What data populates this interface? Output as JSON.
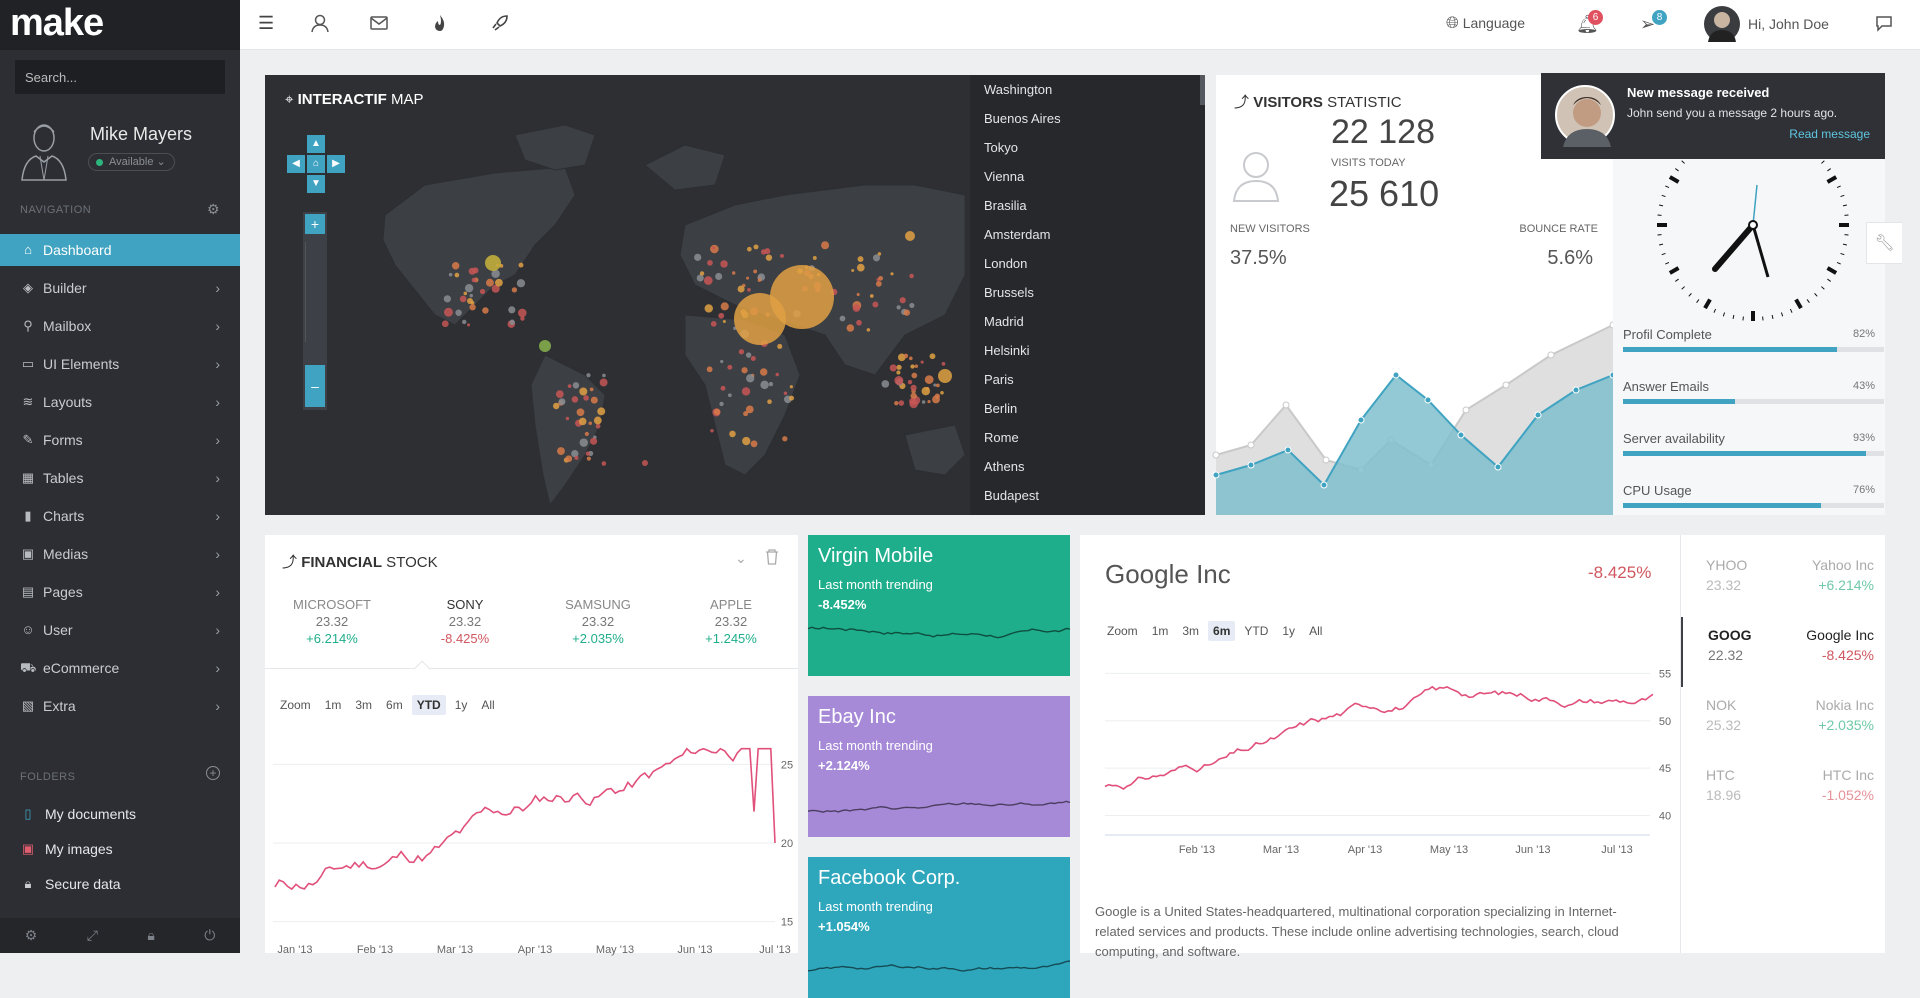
{
  "app": {
    "logo": "make"
  },
  "sidebar": {
    "search_placeholder": "Search...",
    "profile": {
      "name": "Mike Mayers",
      "status": "Available"
    },
    "nav_label": "NAVIGATION",
    "items": [
      {
        "label": "Dashboard",
        "icon": "home-icon"
      },
      {
        "label": "Builder",
        "icon": "tag-icon"
      },
      {
        "label": "Mailbox",
        "icon": "pin-icon"
      },
      {
        "label": "UI Elements",
        "icon": "monitor-icon"
      },
      {
        "label": "Layouts",
        "icon": "layers-icon"
      },
      {
        "label": "Forms",
        "icon": "edit-icon"
      },
      {
        "label": "Tables",
        "icon": "table-icon"
      },
      {
        "label": "Charts",
        "icon": "bar-chart-icon"
      },
      {
        "label": "Medias",
        "icon": "image-icon"
      },
      {
        "label": "Pages",
        "icon": "folder-icon"
      },
      {
        "label": "User",
        "icon": "user-icon"
      },
      {
        "label": "eCommerce",
        "icon": "cart-icon"
      },
      {
        "label": "Extra",
        "icon": "box-icon"
      }
    ],
    "folders_label": "FOLDERS",
    "folders": [
      {
        "label": "My documents",
        "color": "#3fa3c1"
      },
      {
        "label": "My images",
        "color": "#e05d6f"
      },
      {
        "label": "Secure data",
        "color": "#c9ccd1"
      }
    ]
  },
  "topbar": {
    "language": "Language",
    "notifications_count": "6",
    "messages_count": "8",
    "user_greeting": "Hi, John Doe"
  },
  "map": {
    "title_bold": "INTERACTIF",
    "title_rest": " MAP",
    "cities": [
      "Washington",
      "Buenos Aires",
      "Tokyo",
      "Vienna",
      "Brasilia",
      "Amsterdam",
      "London",
      "Brussels",
      "Madrid",
      "Helsinki",
      "Paris",
      "Berlin",
      "Rome",
      "Athens",
      "Budapest"
    ]
  },
  "visitors": {
    "title_bold": "VISITORS",
    "title_rest": " STATISTIC",
    "partial_top": "22 128",
    "visits_today_label": "VISITS TODAY",
    "visits_today": "25 610",
    "new_visitors_label": "NEW VISITORS",
    "new_visitors": "37.5%",
    "bounce_rate_label": "BOUNCE RATE",
    "bounce_rate": "5.6%"
  },
  "toast": {
    "title": "New message received",
    "body": "John send you a message 2 hours ago.",
    "link": "Read message"
  },
  "progress": [
    {
      "label": "Profil Complete",
      "pct": "82%",
      "value": 82
    },
    {
      "label": "Answer Emails",
      "pct": "43%",
      "value": 43
    },
    {
      "label": "Server availability",
      "pct": "93%",
      "value": 93
    },
    {
      "label": "CPU Usage",
      "pct": "76%",
      "value": 76
    }
  ],
  "financial": {
    "title_bold": "FINANCIAL",
    "title_rest": " STOCK",
    "tickers": [
      {
        "name": "MICROSOFT",
        "price": "23.32",
        "change": "+6.214%",
        "up": true
      },
      {
        "name": "SONY",
        "price": "23.32",
        "change": "-8.425%",
        "up": false
      },
      {
        "name": "SAMSUNG",
        "price": "23.32",
        "change": "+2.035%",
        "up": true
      },
      {
        "name": "APPLE",
        "price": "23.32",
        "change": "+1.245%",
        "up": true
      }
    ],
    "zoom_label": "Zoom",
    "zoom_options": [
      "1m",
      "3m",
      "6m",
      "YTD",
      "1y",
      "All"
    ],
    "zoom_selected": "YTD",
    "y_ticks": [
      "25",
      "20",
      "15"
    ],
    "x_ticks": [
      "Jan '13",
      "Feb '13",
      "Mar '13",
      "Apr '13",
      "May '13",
      "Jun '13",
      "Jul '13"
    ]
  },
  "tiles": [
    {
      "name": "Virgin Mobile",
      "sub": "Last month trending",
      "value": "-8.452%",
      "color": "#1fae8b"
    },
    {
      "name": "Ebay Inc",
      "sub": "Last month trending",
      "value": "+2.124%",
      "color": "#a68ad7"
    },
    {
      "name": "Facebook Corp.",
      "sub": "Last month trending",
      "value": "+1.054%",
      "color": "#2ea7bc"
    }
  ],
  "google": {
    "name": "Google Inc",
    "change": "-8.425%",
    "zoom_label": "Zoom",
    "zoom_options": [
      "1m",
      "3m",
      "6m",
      "YTD",
      "1y",
      "All"
    ],
    "zoom_selected": "6m",
    "y_ticks": [
      "55",
      "50",
      "45",
      "40"
    ],
    "x_ticks": [
      "Feb '13",
      "Mar '13",
      "Apr '13",
      "May '13",
      "Jun '13",
      "Jul '13"
    ],
    "description": "Google is a United States-headquartered, multinational corporation specializing in Internet-related services and products. These include online advertising technologies, search, cloud computing, and software."
  },
  "stock_list": [
    {
      "symbol": "YHOO",
      "price": "23.32",
      "company": "Yahoo Inc",
      "change": "+6.214%",
      "up": true,
      "active": false
    },
    {
      "symbol": "GOOG",
      "price": "22.32",
      "company": "Google Inc",
      "change": "-8.425%",
      "up": false,
      "active": true
    },
    {
      "symbol": "NOK",
      "price": "25.32",
      "company": "Nokia Inc",
      "change": "+2.035%",
      "up": true,
      "active": false
    },
    {
      "symbol": "HTC",
      "price": "18.96",
      "company": "HTC Inc",
      "change": "-1.052%",
      "up": false,
      "active": false
    }
  ],
  "colors": {
    "accent": "#3fa3c1",
    "up": "#1fae8b",
    "down": "#d0575f",
    "line": "#e0507a"
  }
}
